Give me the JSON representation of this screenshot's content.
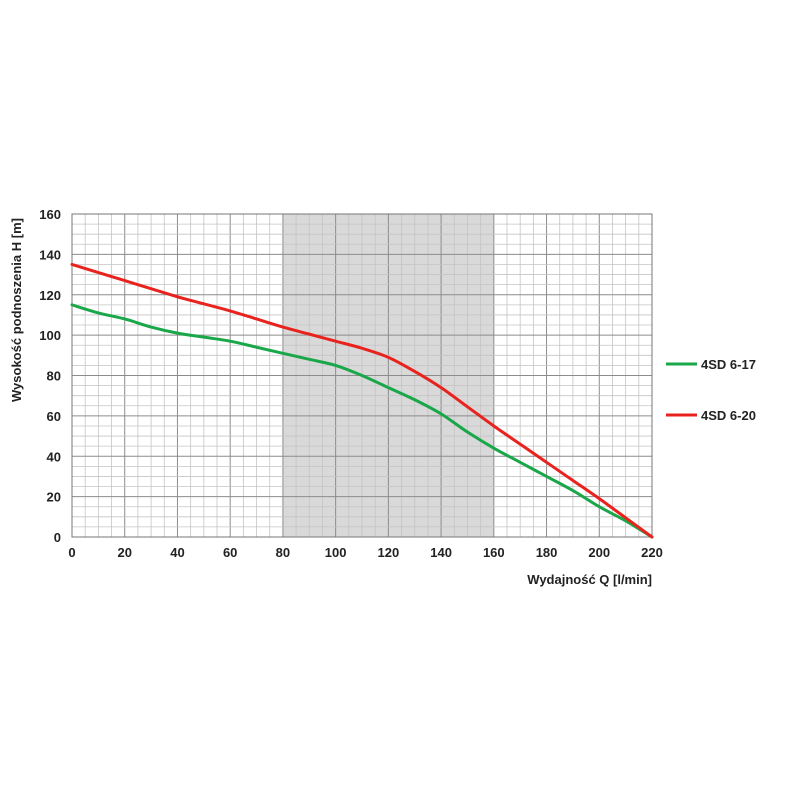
{
  "chart_data": {
    "type": "line",
    "title": "",
    "xlabel": "Wydajność Q [l/min]",
    "ylabel": "Wysokość podnoszenia H [m]",
    "xlim": [
      0,
      220
    ],
    "ylim": [
      0,
      160
    ],
    "x_ticks": [
      0,
      20,
      40,
      60,
      80,
      100,
      120,
      140,
      160,
      180,
      200,
      220
    ],
    "y_ticks": [
      0,
      20,
      40,
      60,
      80,
      100,
      120,
      140,
      160
    ],
    "grid": true,
    "shaded_range": [
      80,
      160
    ],
    "shaded_color": "#d9d9d9",
    "legend_position": "right",
    "series": [
      {
        "name": "4SD 6-17",
        "color": "#1aa74a",
        "x": [
          0,
          10,
          20,
          30,
          40,
          50,
          60,
          70,
          80,
          90,
          100,
          110,
          120,
          130,
          140,
          150,
          160,
          170,
          180,
          190,
          200,
          210,
          220
        ],
        "y": [
          115,
          111,
          108,
          104,
          101,
          99,
          97,
          94,
          91,
          88,
          85,
          80,
          74,
          68,
          61,
          52,
          44,
          37,
          30,
          23,
          15,
          8,
          0
        ]
      },
      {
        "name": "4SD 6-20",
        "color": "#e8231e",
        "x": [
          0,
          10,
          20,
          30,
          40,
          50,
          60,
          70,
          80,
          90,
          100,
          110,
          120,
          130,
          140,
          150,
          160,
          170,
          180,
          190,
          200,
          210,
          220
        ],
        "y": [
          135,
          131,
          127,
          123,
          119,
          115.5,
          112,
          108,
          104,
          100.5,
          97,
          93.5,
          89,
          82,
          74,
          64.5,
          55,
          46,
          37,
          28,
          19,
          9.5,
          0
        ]
      }
    ]
  }
}
